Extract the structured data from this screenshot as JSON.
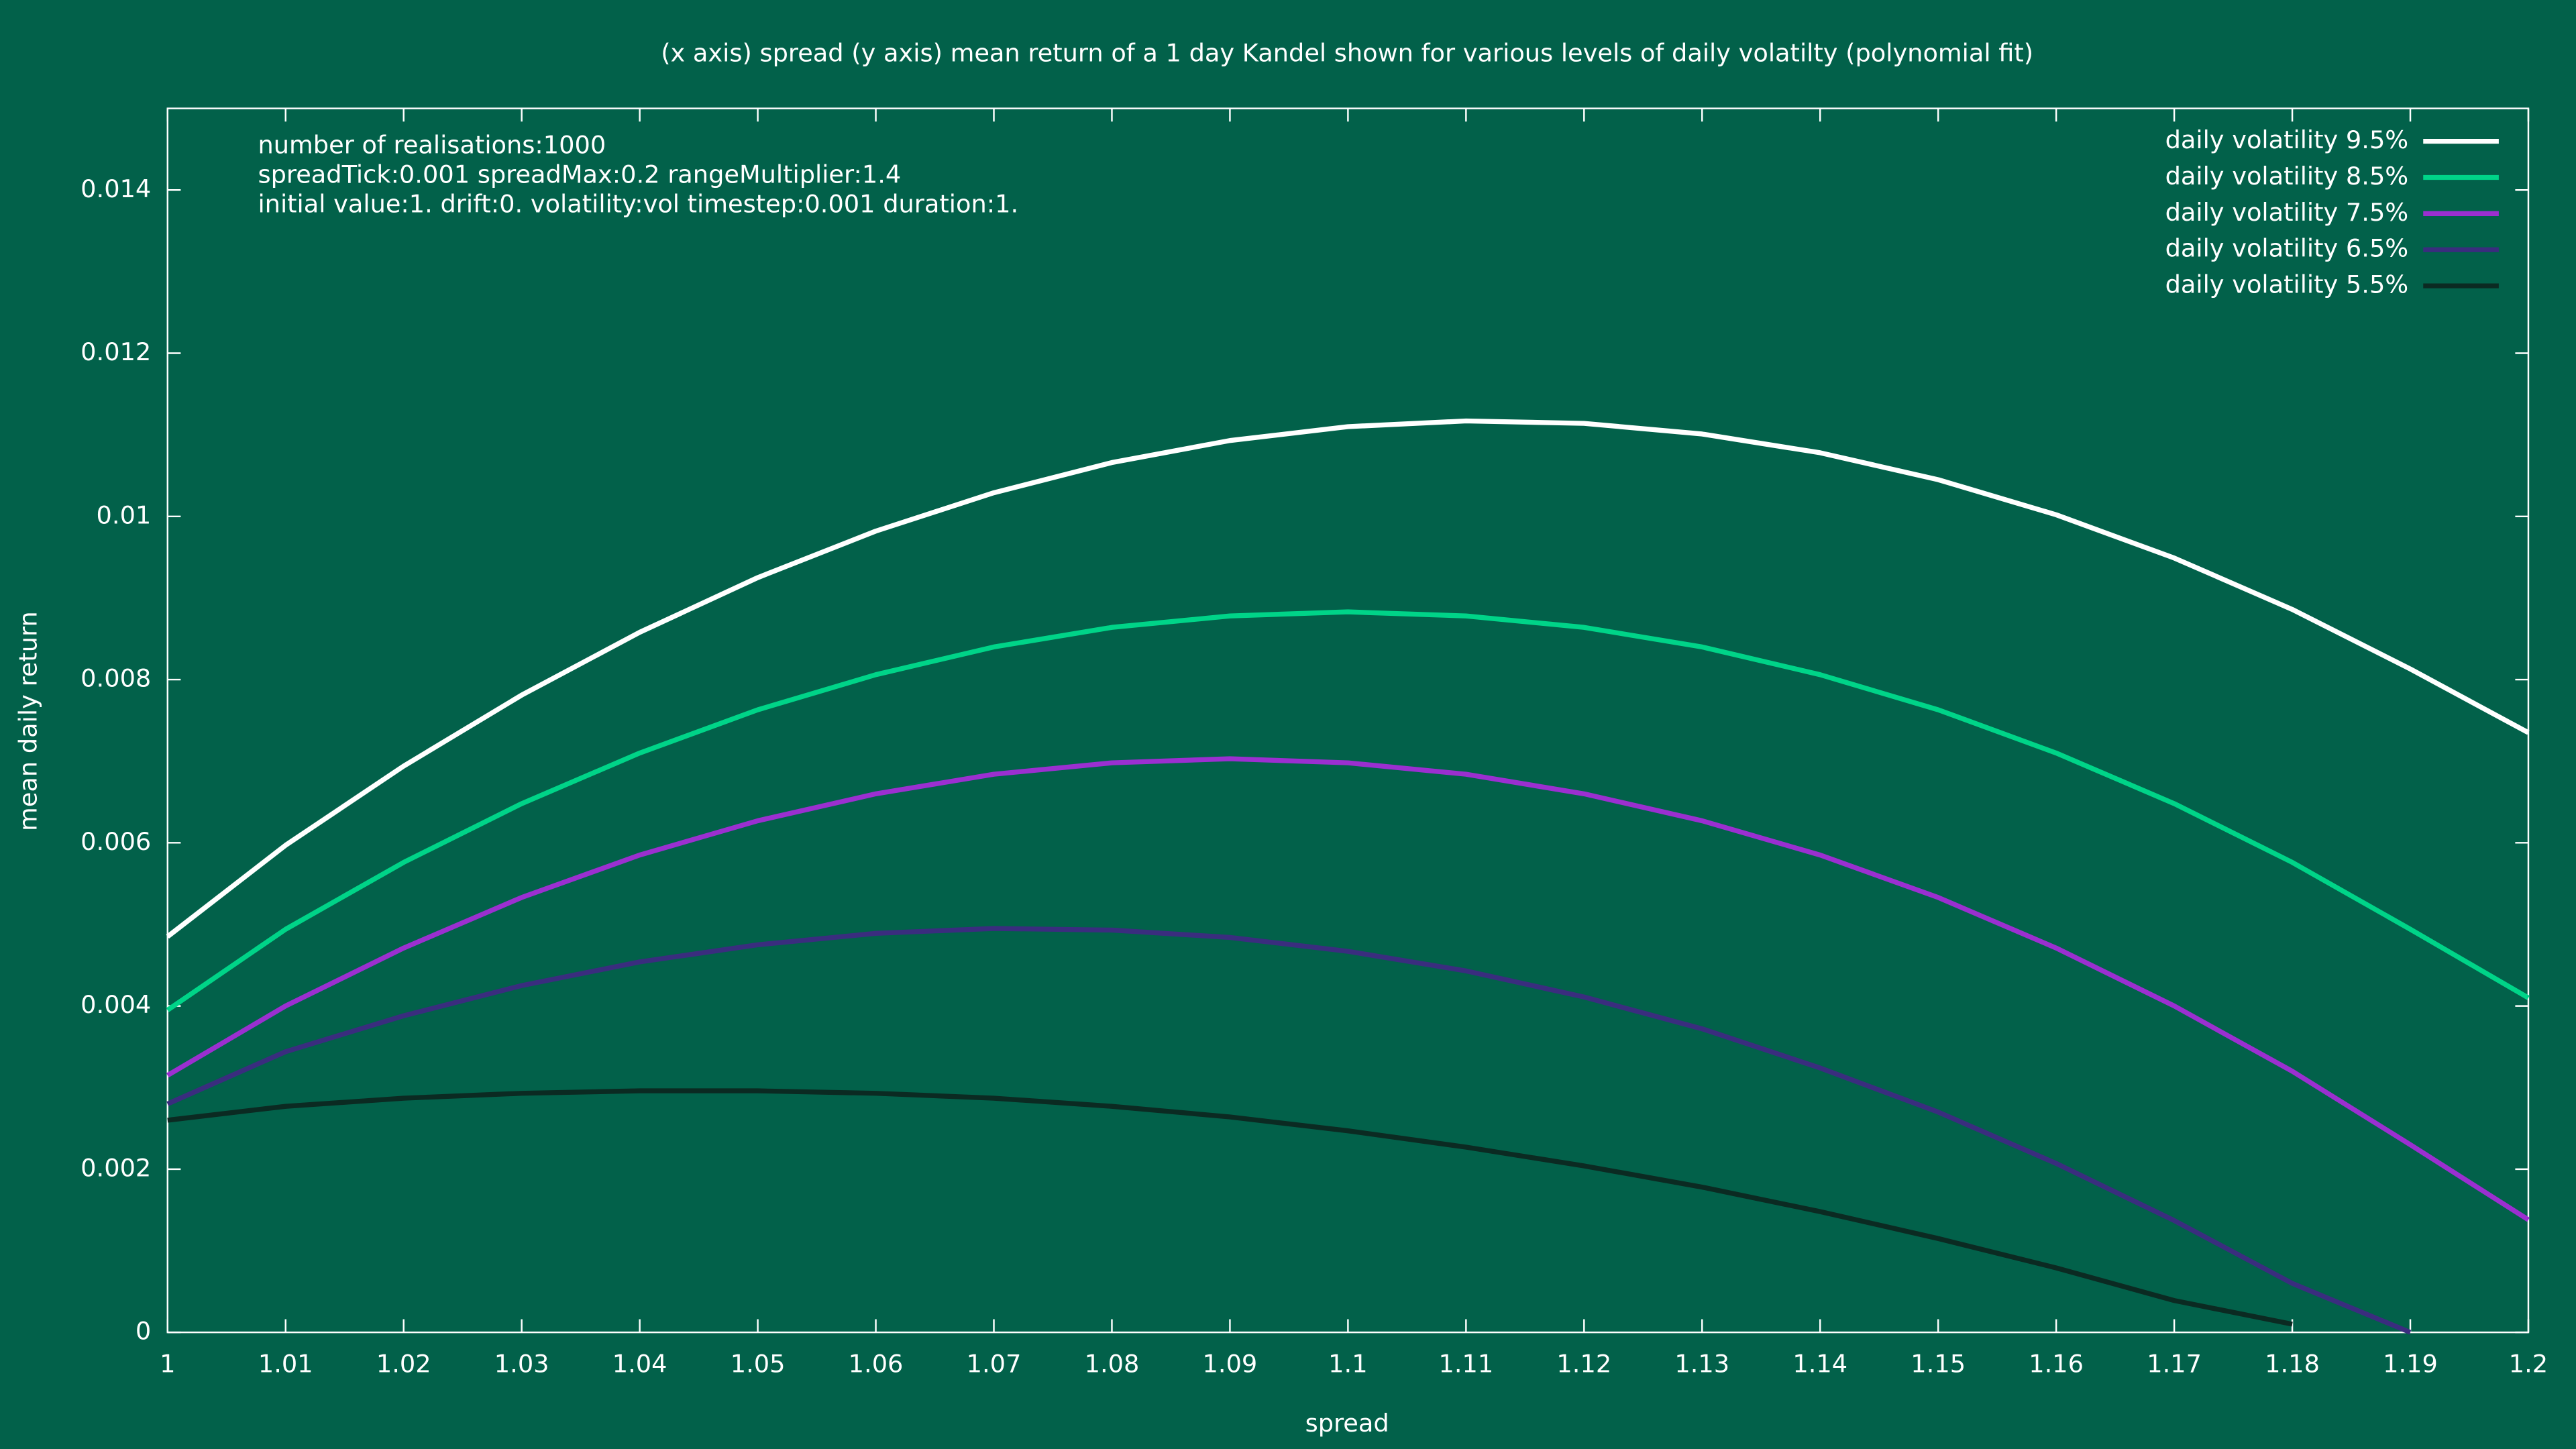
{
  "chart_data": {
    "type": "line",
    "title": "(x axis) spread  (y axis) mean return of a 1 day Kandel shown for various levels of daily volatilty (polynomial fit)",
    "xlabel": "spread",
    "ylabel": "mean daily return",
    "annotations": [
      "number of realisations:1000",
      "spreadTick:0.001 spreadMax:0.2 rangeMultiplier:1.4",
      "initial value:1. drift:0. volatility:vol timestep:0.001 duration:1."
    ],
    "legend": "top-right",
    "x": [
      1,
      1.01,
      1.02,
      1.03,
      1.04,
      1.05,
      1.06,
      1.07,
      1.08,
      1.09,
      1.1,
      1.11,
      1.12,
      1.13,
      1.14,
      1.15,
      1.16,
      1.17,
      1.18,
      1.19,
      1.2
    ],
    "xlim": [
      1,
      1.2
    ],
    "xticks": [
      1,
      1.01,
      1.02,
      1.03,
      1.04,
      1.05,
      1.06,
      1.07,
      1.08,
      1.09,
      1.1,
      1.11,
      1.12,
      1.13,
      1.14,
      1.15,
      1.16,
      1.17,
      1.18,
      1.19,
      1.2
    ],
    "ylim": [
      0,
      0.015
    ],
    "yticks": [
      0,
      0.002,
      0.004,
      0.006,
      0.008,
      0.01,
      0.012,
      0.014
    ],
    "series": [
      {
        "name": "daily volatility 9.5%",
        "color": "#ffffff",
        "values": [
          0.00485,
          0.00597,
          0.00694,
          0.00781,
          0.00858,
          0.00925,
          0.00982,
          0.01029,
          0.01066,
          0.01093,
          0.0111,
          0.01117,
          0.01114,
          0.01101,
          0.01078,
          0.01045,
          0.01002,
          0.00949,
          0.00886,
          0.00813,
          0.00735
        ]
      },
      {
        "name": "daily volatility 8.5%",
        "color": "#00d488",
        "values": [
          0.00395,
          0.00494,
          0.00576,
          0.00648,
          0.0071,
          0.00763,
          0.00806,
          0.0084,
          0.00864,
          0.00878,
          0.00883,
          0.00878,
          0.00864,
          0.0084,
          0.00806,
          0.00763,
          0.0071,
          0.00648,
          0.00576,
          0.00494,
          0.0041
        ]
      },
      {
        "name": "daily volatility 7.5%",
        "color": "#9b2fd0",
        "values": [
          0.00315,
          0.004,
          0.00471,
          0.00533,
          0.00585,
          0.00627,
          0.0066,
          0.00684,
          0.00698,
          0.00703,
          0.00698,
          0.00684,
          0.0066,
          0.00627,
          0.00585,
          0.00533,
          0.00471,
          0.004,
          0.0032,
          0.0023,
          0.00138
        ]
      },
      {
        "name": "daily volatility 6.5%",
        "color": "#3a2d7e",
        "values": [
          0.0028,
          0.00344,
          0.00388,
          0.00425,
          0.00454,
          0.00475,
          0.00489,
          0.00495,
          0.00493,
          0.00484,
          0.00467,
          0.00443,
          0.00411,
          0.00372,
          0.00324,
          0.0027,
          0.00207,
          0.00137,
          0.0006,
          0,
          null
        ]
      },
      {
        "name": "daily volatility 5.5%",
        "color": "#0b2a22",
        "values": [
          0.0026,
          0.00277,
          0.00287,
          0.00293,
          0.00296,
          0.00296,
          0.00293,
          0.00287,
          0.00277,
          0.00264,
          0.00247,
          0.00227,
          0.00204,
          0.00178,
          0.00148,
          0.00115,
          0.00079,
          0.00039,
          0.0001,
          null,
          null
        ]
      }
    ]
  }
}
